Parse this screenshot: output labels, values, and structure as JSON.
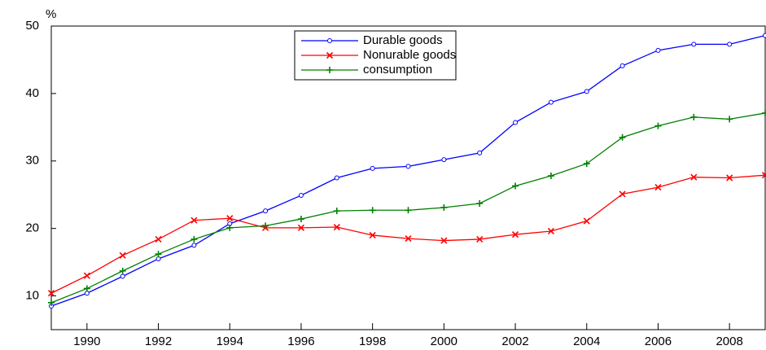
{
  "chart_data": {
    "type": "line",
    "y_label": "%",
    "x": [
      1989,
      1990,
      1991,
      1992,
      1993,
      1994,
      1995,
      1996,
      1997,
      1998,
      1999,
      2000,
      2001,
      2002,
      2003,
      2004,
      2005,
      2006,
      2007,
      2008,
      2009
    ],
    "series": [
      {
        "name": "Durable goods",
        "color": "#0000ff",
        "marker": "circle",
        "values": [
          8.5,
          10.4,
          12.9,
          15.5,
          17.5,
          20.7,
          22.6,
          24.9,
          27.5,
          28.9,
          29.2,
          30.2,
          31.2,
          35.7,
          38.7,
          40.3,
          44.1,
          46.4,
          47.3,
          47.3,
          48.6
        ]
      },
      {
        "name": "Nonurable goods",
        "color": "#ff0000",
        "marker": "cross",
        "values": [
          10.4,
          13.0,
          16.0,
          18.4,
          21.2,
          21.5,
          20.1,
          20.1,
          20.2,
          19.0,
          18.5,
          18.2,
          18.4,
          19.1,
          19.6,
          21.1,
          25.1,
          26.1,
          27.6,
          27.5,
          27.9
        ]
      },
      {
        "name": "consumption",
        "color": "#008000",
        "marker": "plus",
        "values": [
          9.0,
          11.1,
          13.7,
          16.2,
          18.4,
          20.1,
          20.4,
          21.4,
          22.6,
          22.7,
          22.7,
          23.1,
          23.7,
          26.3,
          27.8,
          29.6,
          33.5,
          35.2,
          36.5,
          36.2,
          37.1
        ]
      }
    ],
    "xlim": [
      1989,
      2009
    ],
    "xticks": [
      1990,
      1992,
      1994,
      1996,
      1998,
      2000,
      2002,
      2004,
      2006,
      2008
    ],
    "ylim": [
      5,
      50
    ],
    "yticks": [
      10,
      20,
      30,
      40,
      50
    ]
  }
}
